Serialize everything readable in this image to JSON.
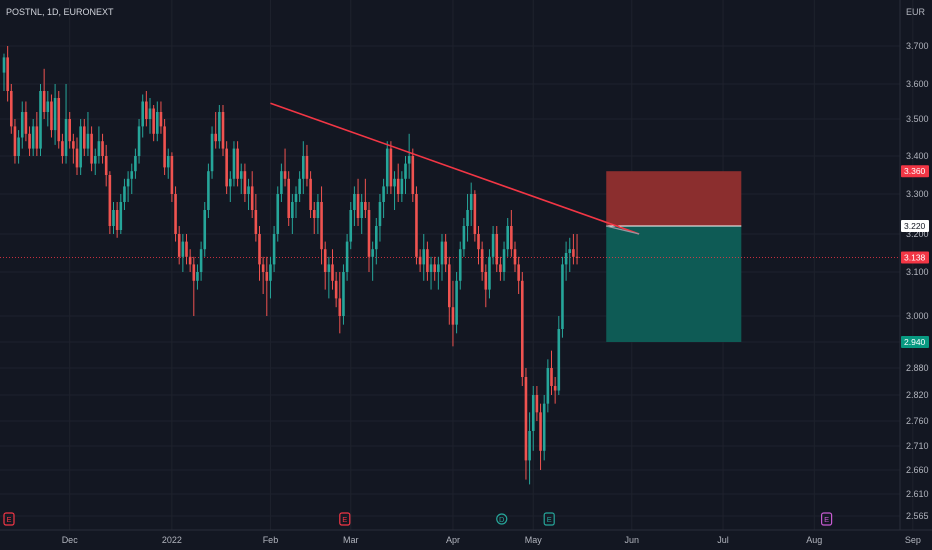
{
  "header": {
    "symbol_info": "POSTNL, 1D, EURONEXT",
    "currency": "EUR"
  },
  "colors": {
    "background": "#131722",
    "up": "#26a69a",
    "down": "#ef5350",
    "trendline": "#f23645",
    "stop_zone": "#8b2e2e",
    "target_zone": "#0e5b55",
    "grid": "#1e222d",
    "text": "#b2b5be",
    "last_price": "#f23645",
    "entry_label_bg": "#ffffff",
    "target_label_bg": "#089981",
    "earnings": "#f23645",
    "dividend": "#26a69a",
    "future_event": "#c75bd1"
  },
  "chart_data": {
    "type": "candlestick",
    "title": "POSTNL, 1D, EURONEXT",
    "currency": "EUR",
    "y_axis": {
      "ticks": [
        "3.700",
        "3.600",
        "3.500",
        "3.400",
        "3.300",
        "3.200",
        "3.100",
        "3.000",
        "2.940",
        "2.880",
        "2.820",
        "2.760",
        "2.710",
        "2.660",
        "2.610",
        "2.565"
      ],
      "tick_values": [
        3.7,
        3.6,
        3.5,
        3.4,
        3.3,
        3.2,
        3.1,
        3.0,
        2.94,
        2.88,
        2.82,
        2.76,
        2.71,
        2.66,
        2.61,
        2.565
      ],
      "tick_positions": [
        46,
        84,
        119,
        156,
        194,
        234,
        272,
        316,
        342,
        368,
        395,
        421,
        446,
        470,
        494,
        516
      ]
    },
    "x_axis": {
      "labels": [
        "Dec",
        "2022",
        "Feb",
        "Mar",
        "Apr",
        "May",
        "Jun",
        "Jul",
        "Aug",
        "Sep"
      ],
      "label_index": [
        18,
        46,
        73,
        95,
        123,
        145,
        172,
        197,
        222,
        249
      ]
    },
    "price_labels": [
      {
        "text": "3.360",
        "kind": "stop",
        "value": 3.36
      },
      {
        "text": "3.220",
        "kind": "entry",
        "value": 3.22
      },
      {
        "text": "3.138",
        "kind": "last",
        "value": 3.138
      },
      {
        "text": "2.940",
        "kind": "target",
        "value": 2.94
      }
    ],
    "last_price": 3.138,
    "position": {
      "side": "short",
      "entry": 3.22,
      "stop": 3.36,
      "target": 2.94,
      "start_index": 165,
      "end_index": 202
    },
    "trendline": {
      "from": {
        "index": 73,
        "price": 3.545
      },
      "to": {
        "index": 174,
        "price": 3.2
      }
    },
    "trendline_ext": {
      "from": {
        "index": 165,
        "price": 3.22
      },
      "to": {
        "index": 174,
        "price": 3.2
      }
    },
    "events": [
      {
        "type": "E",
        "index": 0,
        "color": "earnings"
      },
      {
        "type": "E",
        "index": 92,
        "color": "earnings"
      },
      {
        "type": "D",
        "index": 135,
        "color": "dividend"
      },
      {
        "type": "E",
        "index": 148,
        "color": "dividend"
      },
      {
        "type": "E",
        "index": 224,
        "color": "future_event"
      }
    ],
    "ohlc": [
      [
        3.63,
        3.68,
        3.58,
        3.67
      ],
      [
        3.67,
        3.7,
        3.55,
        3.58
      ],
      [
        3.58,
        3.6,
        3.46,
        3.48
      ],
      [
        3.48,
        3.5,
        3.38,
        3.4
      ],
      [
        3.4,
        3.47,
        3.38,
        3.45
      ],
      [
        3.45,
        3.55,
        3.42,
        3.52
      ],
      [
        3.52,
        3.55,
        3.44,
        3.46
      ],
      [
        3.46,
        3.48,
        3.4,
        3.42
      ],
      [
        3.42,
        3.5,
        3.4,
        3.48
      ],
      [
        3.48,
        3.52,
        3.4,
        3.42
      ],
      [
        3.42,
        3.6,
        3.4,
        3.58
      ],
      [
        3.58,
        3.64,
        3.5,
        3.52
      ],
      [
        3.52,
        3.58,
        3.48,
        3.55
      ],
      [
        3.55,
        3.57,
        3.45,
        3.47
      ],
      [
        3.47,
        3.6,
        3.43,
        3.56
      ],
      [
        3.56,
        3.58,
        3.42,
        3.44
      ],
      [
        3.44,
        3.46,
        3.38,
        3.4
      ],
      [
        3.4,
        3.6,
        3.38,
        3.5
      ],
      [
        3.5,
        3.52,
        3.42,
        3.44
      ],
      [
        3.44,
        3.46,
        3.38,
        3.42
      ],
      [
        3.42,
        3.45,
        3.35,
        3.37
      ],
      [
        3.37,
        3.5,
        3.35,
        3.48
      ],
      [
        3.48,
        3.5,
        3.4,
        3.42
      ],
      [
        3.42,
        3.52,
        3.4,
        3.46
      ],
      [
        3.46,
        3.48,
        3.36,
        3.38
      ],
      [
        3.38,
        3.42,
        3.35,
        3.4
      ],
      [
        3.4,
        3.48,
        3.38,
        3.44
      ],
      [
        3.44,
        3.46,
        3.38,
        3.4
      ],
      [
        3.4,
        3.43,
        3.32,
        3.35
      ],
      [
        3.35,
        3.36,
        3.2,
        3.22
      ],
      [
        3.22,
        3.28,
        3.2,
        3.26
      ],
      [
        3.26,
        3.28,
        3.19,
        3.21
      ],
      [
        3.21,
        3.3,
        3.2,
        3.28
      ],
      [
        3.28,
        3.34,
        3.26,
        3.32
      ],
      [
        3.32,
        3.36,
        3.28,
        3.34
      ],
      [
        3.34,
        3.38,
        3.3,
        3.36
      ],
      [
        3.36,
        3.42,
        3.34,
        3.4
      ],
      [
        3.4,
        3.5,
        3.38,
        3.48
      ],
      [
        3.48,
        3.57,
        3.45,
        3.55
      ],
      [
        3.55,
        3.58,
        3.48,
        3.5
      ],
      [
        3.5,
        3.56,
        3.46,
        3.53
      ],
      [
        3.53,
        3.54,
        3.44,
        3.46
      ],
      [
        3.46,
        3.55,
        3.44,
        3.52
      ],
      [
        3.52,
        3.55,
        3.46,
        3.48
      ],
      [
        3.48,
        3.5,
        3.35,
        3.37
      ],
      [
        3.37,
        3.42,
        3.34,
        3.4
      ],
      [
        3.4,
        3.41,
        3.28,
        3.3
      ],
      [
        3.3,
        3.32,
        3.18,
        3.2
      ],
      [
        3.2,
        3.22,
        3.12,
        3.14
      ],
      [
        3.14,
        3.2,
        3.1,
        3.18
      ],
      [
        3.18,
        3.2,
        3.12,
        3.14
      ],
      [
        3.14,
        3.16,
        3.1,
        3.12
      ],
      [
        3.12,
        3.14,
        3.0,
        3.08
      ],
      [
        3.08,
        3.12,
        3.06,
        3.1
      ],
      [
        3.1,
        3.18,
        3.08,
        3.16
      ],
      [
        3.16,
        3.28,
        3.14,
        3.26
      ],
      [
        3.26,
        3.38,
        3.24,
        3.36
      ],
      [
        3.36,
        3.48,
        3.34,
        3.46
      ],
      [
        3.46,
        3.52,
        3.42,
        3.44
      ],
      [
        3.44,
        3.54,
        3.42,
        3.52
      ],
      [
        3.52,
        3.54,
        3.4,
        3.42
      ],
      [
        3.42,
        3.44,
        3.3,
        3.32
      ],
      [
        3.32,
        3.36,
        3.28,
        3.34
      ],
      [
        3.34,
        3.44,
        3.32,
        3.42
      ],
      [
        3.42,
        3.44,
        3.32,
        3.34
      ],
      [
        3.34,
        3.38,
        3.3,
        3.36
      ],
      [
        3.36,
        3.38,
        3.28,
        3.3
      ],
      [
        3.3,
        3.34,
        3.26,
        3.32
      ],
      [
        3.32,
        3.36,
        3.24,
        3.26
      ],
      [
        3.26,
        3.3,
        3.18,
        3.2
      ],
      [
        3.2,
        3.22,
        3.08,
        3.12
      ],
      [
        3.12,
        3.14,
        3.05,
        3.1
      ],
      [
        3.1,
        3.14,
        3.0,
        3.08
      ],
      [
        3.08,
        3.14,
        3.04,
        3.12
      ],
      [
        3.12,
        3.22,
        3.1,
        3.2
      ],
      [
        3.2,
        3.32,
        3.18,
        3.3
      ],
      [
        3.3,
        3.38,
        3.28,
        3.36
      ],
      [
        3.36,
        3.42,
        3.32,
        3.34
      ],
      [
        3.34,
        3.36,
        3.22,
        3.24
      ],
      [
        3.24,
        3.3,
        3.2,
        3.28
      ],
      [
        3.28,
        3.32,
        3.24,
        3.3
      ],
      [
        3.3,
        3.36,
        3.28,
        3.34
      ],
      [
        3.34,
        3.44,
        3.3,
        3.4
      ],
      [
        3.4,
        3.43,
        3.32,
        3.34
      ],
      [
        3.34,
        3.36,
        3.24,
        3.26
      ],
      [
        3.26,
        3.28,
        3.2,
        3.24
      ],
      [
        3.24,
        3.3,
        3.2,
        3.28
      ],
      [
        3.28,
        3.32,
        3.12,
        3.16
      ],
      [
        3.16,
        3.18,
        3.06,
        3.1
      ],
      [
        3.1,
        3.14,
        3.04,
        3.12
      ],
      [
        3.12,
        3.16,
        3.06,
        3.08
      ],
      [
        3.08,
        3.1,
        3.02,
        3.04
      ],
      [
        3.04,
        3.1,
        2.96,
        3.0
      ],
      [
        3.0,
        3.12,
        2.98,
        3.1
      ],
      [
        3.1,
        3.2,
        3.08,
        3.18
      ],
      [
        3.18,
        3.28,
        3.16,
        3.26
      ],
      [
        3.26,
        3.32,
        3.22,
        3.3
      ],
      [
        3.3,
        3.34,
        3.22,
        3.24
      ],
      [
        3.24,
        3.3,
        3.2,
        3.28
      ],
      [
        3.28,
        3.34,
        3.24,
        3.26
      ],
      [
        3.26,
        3.28,
        3.1,
        3.14
      ],
      [
        3.14,
        3.18,
        3.08,
        3.16
      ],
      [
        3.16,
        3.24,
        3.12,
        3.22
      ],
      [
        3.22,
        3.3,
        3.18,
        3.28
      ],
      [
        3.28,
        3.34,
        3.24,
        3.32
      ],
      [
        3.32,
        3.44,
        3.3,
        3.42
      ],
      [
        3.42,
        3.44,
        3.3,
        3.32
      ],
      [
        3.32,
        3.36,
        3.26,
        3.34
      ],
      [
        3.34,
        3.38,
        3.28,
        3.3
      ],
      [
        3.3,
        3.36,
        3.28,
        3.34
      ],
      [
        3.34,
        3.4,
        3.3,
        3.38
      ],
      [
        3.38,
        3.46,
        3.34,
        3.4
      ],
      [
        3.4,
        3.42,
        3.28,
        3.3
      ],
      [
        3.3,
        3.32,
        3.12,
        3.14
      ],
      [
        3.14,
        3.16,
        3.1,
        3.12
      ],
      [
        3.12,
        3.2,
        3.08,
        3.16
      ],
      [
        3.16,
        3.18,
        3.08,
        3.1
      ],
      [
        3.1,
        3.14,
        3.06,
        3.12
      ],
      [
        3.12,
        3.14,
        3.08,
        3.1
      ],
      [
        3.1,
        3.14,
        3.06,
        3.12
      ],
      [
        3.12,
        3.2,
        3.08,
        3.18
      ],
      [
        3.18,
        3.2,
        3.1,
        3.12
      ],
      [
        3.12,
        3.14,
        2.98,
        3.02
      ],
      [
        3.02,
        3.08,
        2.93,
        2.98
      ],
      [
        2.98,
        3.1,
        2.96,
        3.08
      ],
      [
        3.08,
        3.18,
        3.06,
        3.16
      ],
      [
        3.16,
        3.24,
        3.14,
        3.22
      ],
      [
        3.22,
        3.3,
        3.18,
        3.26
      ],
      [
        3.26,
        3.33,
        3.22,
        3.3
      ],
      [
        3.3,
        3.31,
        3.18,
        3.2
      ],
      [
        3.2,
        3.22,
        3.12,
        3.16
      ],
      [
        3.16,
        3.18,
        3.08,
        3.1
      ],
      [
        3.1,
        3.12,
        3.02,
        3.06
      ],
      [
        3.06,
        3.16,
        3.04,
        3.14
      ],
      [
        3.14,
        3.22,
        3.12,
        3.2
      ],
      [
        3.2,
        3.22,
        3.1,
        3.12
      ],
      [
        3.12,
        3.14,
        3.08,
        3.1
      ],
      [
        3.1,
        3.18,
        3.08,
        3.16
      ],
      [
        3.16,
        3.24,
        3.14,
        3.22
      ],
      [
        3.22,
        3.26,
        3.14,
        3.16
      ],
      [
        3.16,
        3.18,
        3.1,
        3.12
      ],
      [
        3.12,
        3.14,
        3.05,
        3.08
      ],
      [
        3.08,
        3.1,
        2.84,
        2.86
      ],
      [
        2.86,
        2.88,
        2.64,
        2.68
      ],
      [
        2.68,
        2.78,
        2.63,
        2.74
      ],
      [
        2.74,
        2.84,
        2.7,
        2.82
      ],
      [
        2.82,
        2.84,
        2.76,
        2.78
      ],
      [
        2.78,
        2.8,
        2.66,
        2.7
      ],
      [
        2.7,
        2.82,
        2.68,
        2.8
      ],
      [
        2.8,
        2.9,
        2.78,
        2.88
      ],
      [
        2.88,
        2.92,
        2.82,
        2.84
      ],
      [
        2.84,
        2.86,
        2.8,
        2.83
      ],
      [
        2.83,
        3.0,
        2.82,
        2.97
      ],
      [
        2.97,
        3.14,
        2.95,
        3.12
      ],
      [
        3.12,
        3.18,
        3.08,
        3.15
      ],
      [
        3.15,
        3.19,
        3.1,
        3.16
      ],
      [
        3.16,
        3.2,
        3.12,
        3.14
      ],
      [
        3.14,
        3.2,
        3.12,
        3.138
      ]
    ]
  }
}
